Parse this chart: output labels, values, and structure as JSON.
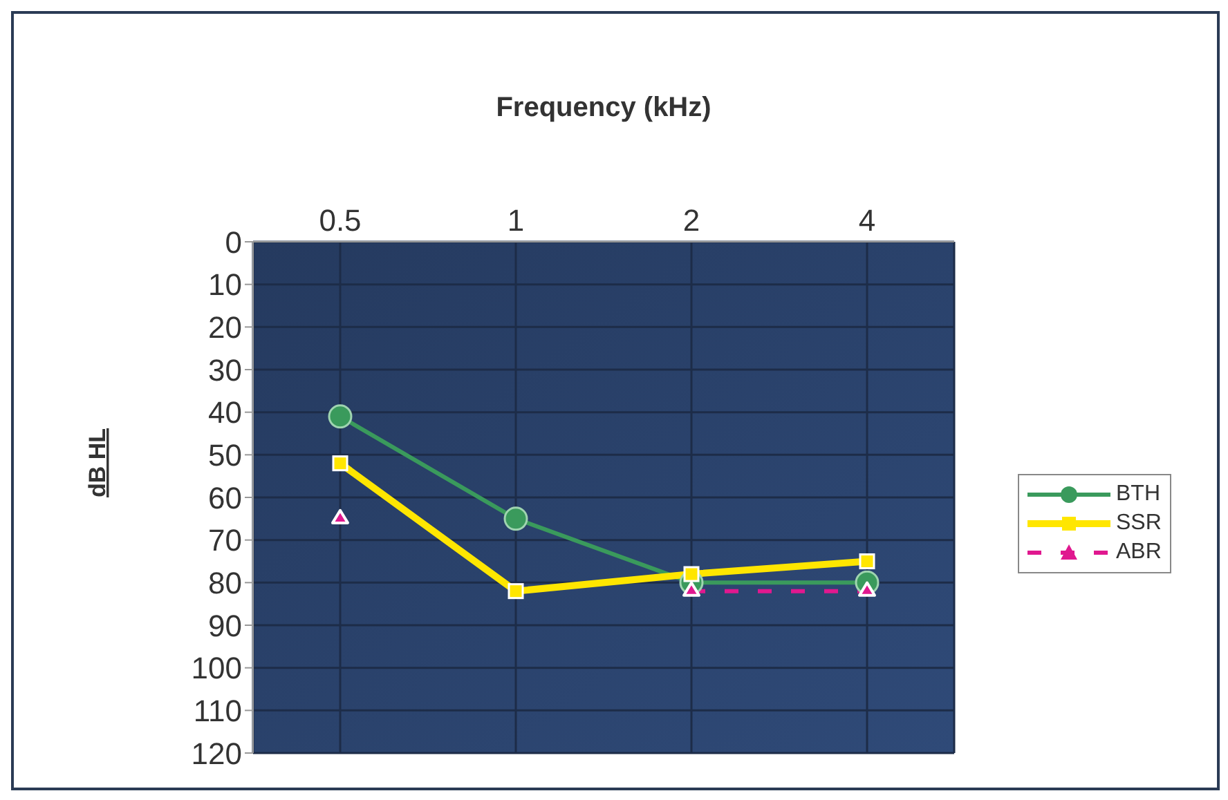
{
  "chart_data": {
    "type": "line",
    "xlabel": "Frequency (kHz)",
    "ylabel": "dB HL",
    "categories": [
      "0.5",
      "1",
      "2",
      "4"
    ],
    "series": [
      {
        "name": "BTH",
        "color": "#3a9a5c",
        "values": [
          41,
          65,
          80,
          80
        ],
        "marker": "circle",
        "line_style": "solid"
      },
      {
        "name": "SSR",
        "color": "#ffe600",
        "values": [
          52,
          82,
          78,
          75
        ],
        "marker": "square",
        "line_style": "solid"
      },
      {
        "name": "ABR",
        "color": "#e0188f",
        "values": [
          65,
          null,
          82,
          82
        ],
        "marker": "triangle",
        "line_style": "dashed"
      }
    ],
    "ylim": [
      120,
      0
    ],
    "yticks": [
      0,
      10,
      20,
      30,
      40,
      50,
      60,
      70,
      80,
      90,
      100,
      110,
      120
    ],
    "grid": true,
    "legend": "right"
  }
}
